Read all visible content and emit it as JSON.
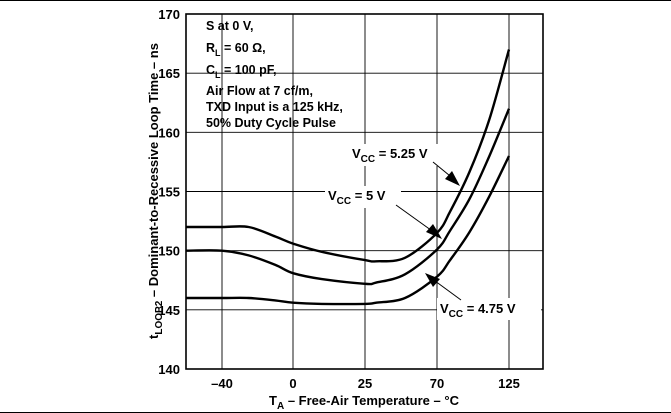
{
  "chart_data": {
    "type": "line",
    "xlabel": {
      "symbol": "T",
      "subscript": "A",
      "text": " – Free-Air Temperature – °C"
    },
    "ylabel": {
      "symbol": "t",
      "subscript": "LOOP2",
      "text": " – Dominant-to-Recessive Loop Time – ns"
    },
    "x_tick_labels": [
      "–40",
      "0",
      "25",
      "70",
      "125"
    ],
    "y_ticks": [
      140,
      145,
      150,
      155,
      160,
      165,
      170
    ],
    "ylim": [
      140,
      170
    ],
    "grid": true,
    "conditions": [
      {
        "text": "S at 0 V,"
      },
      {
        "text": "R",
        "subscript": "L",
        "after": " = 60 Ω,"
      },
      {
        "text": "C",
        "subscript": "L",
        "after": " = 100 pF,"
      },
      {
        "text": "Air Flow at 7 cf/m,"
      },
      {
        "text": "TXD Input is a 125 kHz,"
      },
      {
        "text": "50% Duty Cycle Pulse"
      }
    ],
    "series": [
      {
        "label": {
          "symbol": "V",
          "subscript": "CC",
          "text": " = 5.25 V"
        },
        "x": [
          -55,
          -40,
          -25,
          -10,
          0,
          10,
          25,
          32,
          50,
          70,
          80,
          95,
          110,
          125
        ],
        "y": [
          152,
          152,
          152,
          151.2,
          150.6,
          149.9,
          149.2,
          149.1,
          149.4,
          151.5,
          153.3,
          156.7,
          161.1,
          167
        ]
      },
      {
        "label": {
          "symbol": "V",
          "subscript": "CC",
          "text": " = 5 V"
        },
        "x": [
          -55,
          -40,
          -25,
          -10,
          0,
          10,
          25,
          32,
          50,
          70,
          80,
          95,
          110,
          125
        ],
        "y": [
          150,
          150,
          149.6,
          148.8,
          148.1,
          147.6,
          147.2,
          147.3,
          148,
          150.1,
          151.7,
          154.4,
          158,
          162
        ]
      },
      {
        "label": {
          "symbol": "V",
          "subscript": "CC",
          "text": " = 4.75 V"
        },
        "x": [
          -55,
          -40,
          -25,
          -10,
          0,
          10,
          25,
          32,
          50,
          70,
          80,
          95,
          110,
          125
        ],
        "y": [
          146,
          146,
          146,
          145.8,
          145.6,
          145.5,
          145.5,
          145.6,
          146,
          147.8,
          149.2,
          151.6,
          154.6,
          158
        ]
      }
    ]
  }
}
